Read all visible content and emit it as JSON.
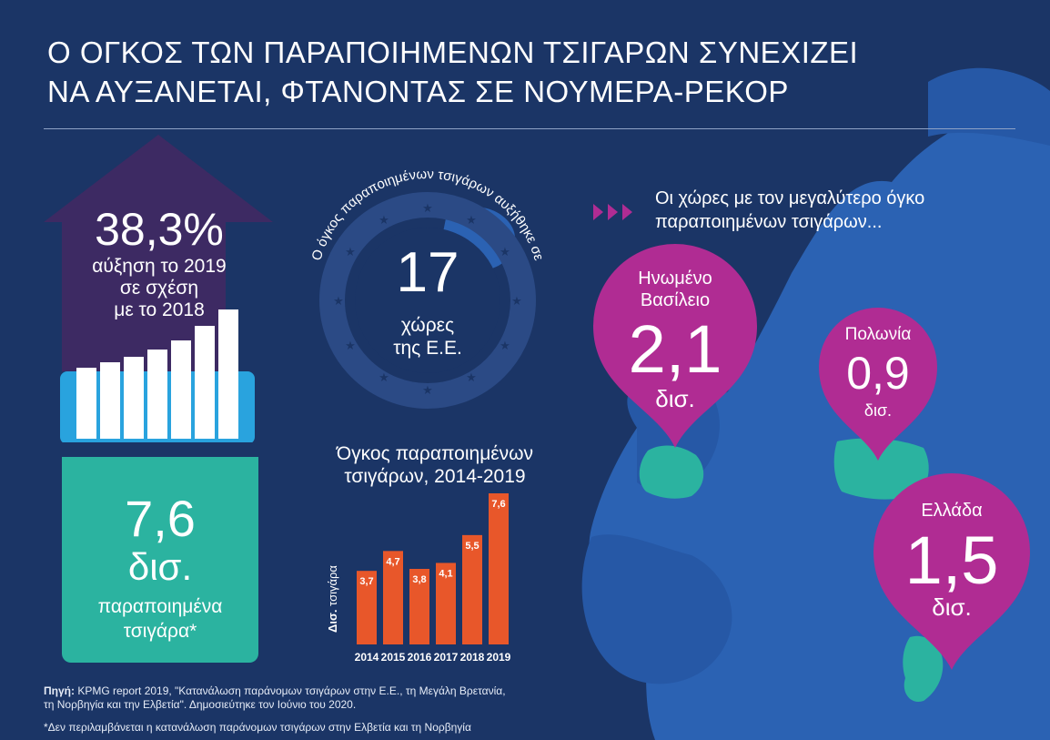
{
  "title": {
    "line1": "Ο ΟΓΚΟΣ ΤΩΝ ΠΑΡΑΠΟΙΗΜΕΝΩΝ ΤΣΙΓΑΡΩΝ ΣΥΝΕΧΙΖΕΙ",
    "line2": "ΝΑ ΑΥΞΑΝΕΤΑΙ, ΦΤΑΝΟΝΤΑΣ ΣΕ ΝΟΥΜΕΡΑ-ΡΕΚΟΡ"
  },
  "increase": {
    "value": "38,3%",
    "line1": "αύξηση το 2019",
    "line2": "σε σχέση",
    "line3": "με το 2018"
  },
  "total": {
    "value": "7,6",
    "unit": "δισ.",
    "line1": "παραποιημένα",
    "line2": "τσιγάρα*"
  },
  "eu": {
    "arc_text": "Ο όγκος παραποιημένων τσιγάρων αυξήθηκε σε",
    "count": "17",
    "line1": "χώρες",
    "line2": "της Ε.Ε."
  },
  "countries_heading": {
    "line1": "Οι χώρες με τον μεγαλύτερο όγκο",
    "line2": "παραποιημένων τσιγάρων..."
  },
  "pins": {
    "uk": {
      "name1": "Ηνωμένο",
      "name2": "Βασίλειο",
      "value": "2,1",
      "unit": "δισ."
    },
    "pl": {
      "name": "Πολωνία",
      "value": "0,9",
      "unit": "δισ."
    },
    "gr": {
      "name": "Ελλάδα",
      "value": "1,5",
      "unit": "δισ."
    }
  },
  "chart_data": {
    "type": "bar",
    "title": "Όγκος παραποιημένων τσιγάρων, 2014-2019",
    "title_line1": "Όγκος παραποιημένων",
    "title_line2": "τσιγάρων, 2014-2019",
    "ylabel_bold": "Δισ.",
    "ylabel": "τσιγάρα",
    "categories": [
      "2014",
      "2015",
      "2016",
      "2017",
      "2018",
      "2019"
    ],
    "values": [
      3.7,
      4.7,
      3.8,
      4.1,
      5.5,
      7.6
    ],
    "labels": [
      "3,7",
      "4,7",
      "3,8",
      "4,1",
      "5,5",
      "7,6"
    ],
    "ylim": [
      0,
      7.6
    ],
    "bar_color": "#e8572a"
  },
  "source": {
    "label": "Πηγή:",
    "line1": " KPMG report 2019, \"Κατανάλωση παράνομων τσιγάρων στην Ε.Ε., τη Μεγάλη Βρετανία,",
    "line2": "τη Νορβηγία και την Ελβετία\". Δημοσιεύτηκε τον Ιούνιο του 2020."
  },
  "footnote": "*Δεν περιλαμβάνεται η κατανάλωση παράνομων τσιγάρων στην Ελβετία και τη Νορβηγία",
  "colors": {
    "background": "#1b3566",
    "map": "#2b62b3",
    "highlight": "#2bb3a0",
    "pin": "#b02c93",
    "arrow": "#3d2a63",
    "bar": "#e8572a"
  }
}
